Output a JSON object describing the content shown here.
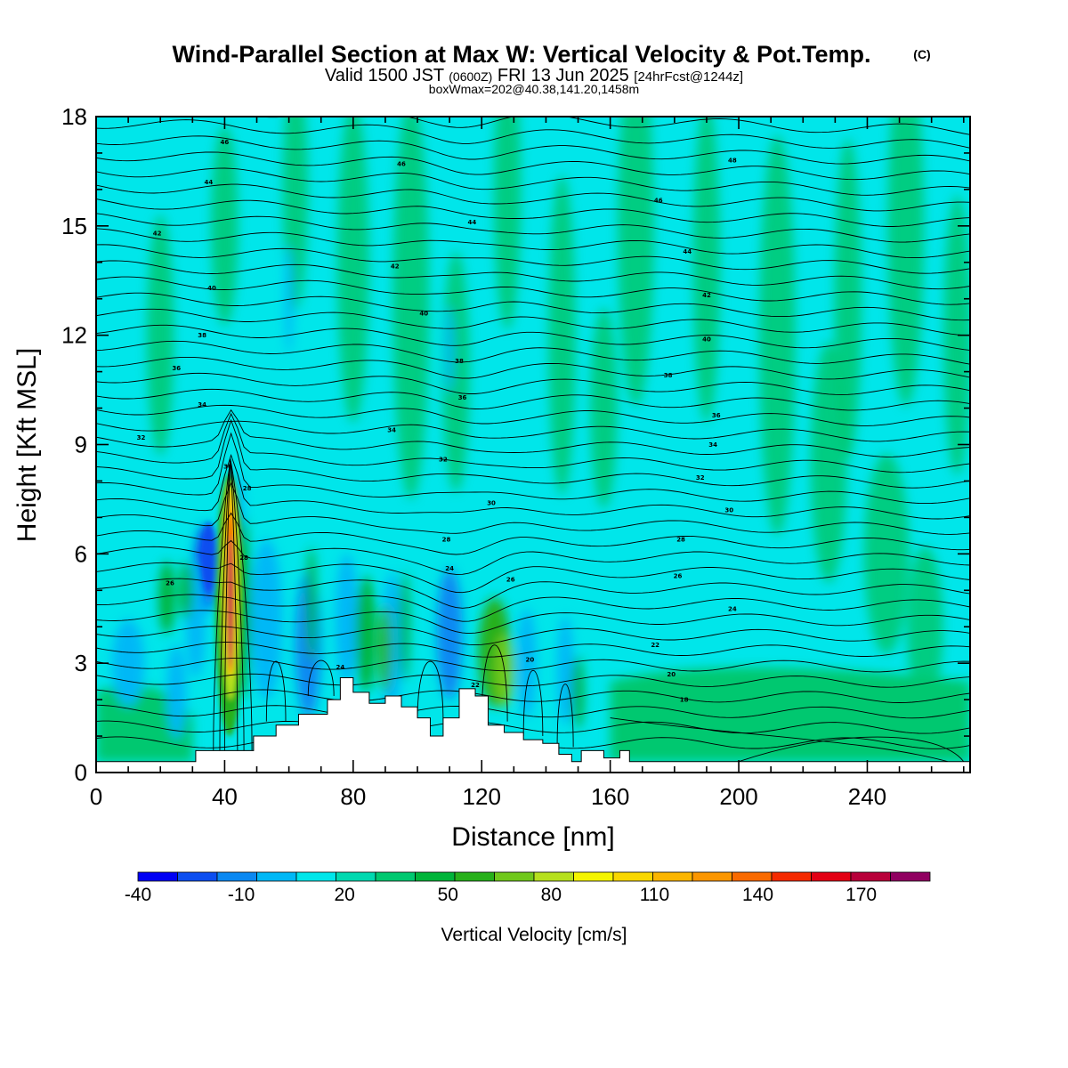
{
  "title": "Wind-Parallel Section at Max W: Vertical Velocity & Pot.Temp.",
  "title_mark": "(C)",
  "subtitle_a": "Valid 1500 JST",
  "subtitle_b": "(0600Z)",
  "subtitle_c": "FRI 13 Jun 2025",
  "subtitle_d": "[24hrFcst@1244z]",
  "subtitle_line3": "boxWmax=202@40.38,141.20,1458m",
  "chart_data": {
    "type": "heatmap",
    "xlabel": "Distance [nm]",
    "ylabel": "Height [Kft MSL]",
    "xlim": [
      0,
      272
    ],
    "ylim": [
      0,
      18
    ],
    "x_ticks": [
      0,
      40,
      80,
      120,
      160,
      200,
      240
    ],
    "y_ticks": [
      0,
      3,
      6,
      9,
      12,
      15,
      18
    ],
    "colorbar": {
      "label": "Vertical Velocity [cm/s]",
      "min": -40,
      "max": 190,
      "step": 10,
      "tick_values": [
        -40,
        -10,
        20,
        50,
        80,
        110,
        140,
        170
      ],
      "tick_labels": [
        "-40",
        "-10",
        "20",
        "50",
        "80",
        "110",
        "140",
        "170"
      ],
      "colors": [
        "#0000f5",
        "#0c4ef0",
        "#0a88f2",
        "#00b8f6",
        "#00e6ea",
        "#00d9b0",
        "#00c870",
        "#00b43a",
        "#27b01a",
        "#70c81c",
        "#b6e01e",
        "#f5f500",
        "#f9d700",
        "#fbb500",
        "#fb9600",
        "#f96a00",
        "#f52a00",
        "#e30014",
        "#b8003a",
        "#900060",
        "#6a0090"
      ]
    },
    "terrain": [
      [
        0,
        0.3
      ],
      [
        27,
        0.3
      ],
      [
        31,
        0.6
      ],
      [
        45,
        0.6
      ],
      [
        49,
        1.0
      ],
      [
        56,
        1.3
      ],
      [
        63,
        1.6
      ],
      [
        72,
        2.0
      ],
      [
        76,
        2.6
      ],
      [
        80,
        2.2
      ],
      [
        85,
        1.9
      ],
      [
        90,
        2.1
      ],
      [
        95,
        1.8
      ],
      [
        100,
        1.5
      ],
      [
        104,
        1.0
      ],
      [
        108,
        1.5
      ],
      [
        113,
        2.3
      ],
      [
        118,
        2.1
      ],
      [
        122,
        1.3
      ],
      [
        127,
        1.1
      ],
      [
        133,
        0.9
      ],
      [
        139,
        0.8
      ],
      [
        144,
        0.5
      ],
      [
        148,
        0.3
      ],
      [
        151,
        0.6
      ],
      [
        158,
        0.4
      ],
      [
        163,
        0.6
      ],
      [
        166,
        0.3
      ],
      [
        272,
        0.3
      ]
    ],
    "theta_contours": {
      "units": "°C-scale potential temperature labels",
      "labels": [
        {
          "x": 40,
          "y": 17.3,
          "v": "46"
        },
        {
          "x": 95,
          "y": 16.7,
          "v": "46"
        },
        {
          "x": 198,
          "y": 16.8,
          "v": "48"
        },
        {
          "x": 35,
          "y": 16.2,
          "v": "44"
        },
        {
          "x": 175,
          "y": 15.7,
          "v": "46"
        },
        {
          "x": 117,
          "y": 15.1,
          "v": "44"
        },
        {
          "x": 19,
          "y": 14.8,
          "v": "42"
        },
        {
          "x": 184,
          "y": 14.3,
          "v": "44"
        },
        {
          "x": 93,
          "y": 13.9,
          "v": "42"
        },
        {
          "x": 36,
          "y": 13.3,
          "v": "40"
        },
        {
          "x": 190,
          "y": 13.1,
          "v": "42"
        },
        {
          "x": 102,
          "y": 12.6,
          "v": "40"
        },
        {
          "x": 33,
          "y": 12.0,
          "v": "38"
        },
        {
          "x": 190,
          "y": 11.9,
          "v": "40"
        },
        {
          "x": 113,
          "y": 11.3,
          "v": "38"
        },
        {
          "x": 25,
          "y": 11.1,
          "v": "36"
        },
        {
          "x": 178,
          "y": 10.9,
          "v": "38"
        },
        {
          "x": 114,
          "y": 10.3,
          "v": "36"
        },
        {
          "x": 33,
          "y": 10.1,
          "v": "34"
        },
        {
          "x": 193,
          "y": 9.8,
          "v": "36"
        },
        {
          "x": 92,
          "y": 9.4,
          "v": "34"
        },
        {
          "x": 14,
          "y": 9.2,
          "v": "32"
        },
        {
          "x": 192,
          "y": 9.0,
          "v": "34"
        },
        {
          "x": 41,
          "y": 8.4,
          "v": "30"
        },
        {
          "x": 108,
          "y": 8.6,
          "v": "32"
        },
        {
          "x": 188,
          "y": 8.1,
          "v": "32"
        },
        {
          "x": 47,
          "y": 7.8,
          "v": "28"
        },
        {
          "x": 123,
          "y": 7.4,
          "v": "30"
        },
        {
          "x": 197,
          "y": 7.2,
          "v": "30"
        },
        {
          "x": 109,
          "y": 6.4,
          "v": "28"
        },
        {
          "x": 182,
          "y": 6.4,
          "v": "28"
        },
        {
          "x": 46,
          "y": 5.9,
          "v": "28"
        },
        {
          "x": 110,
          "y": 5.6,
          "v": "24"
        },
        {
          "x": 129,
          "y": 5.3,
          "v": "26"
        },
        {
          "x": 181,
          "y": 5.4,
          "v": "26"
        },
        {
          "x": 23,
          "y": 5.2,
          "v": "26"
        },
        {
          "x": 198,
          "y": 4.5,
          "v": "24"
        },
        {
          "x": 174,
          "y": 3.5,
          "v": "22"
        },
        {
          "x": 76,
          "y": 2.9,
          "v": "24"
        },
        {
          "x": 135,
          "y": 3.1,
          "v": "20"
        },
        {
          "x": 179,
          "y": 2.7,
          "v": "20"
        },
        {
          "x": 118,
          "y": 2.4,
          "v": "22"
        },
        {
          "x": 183,
          "y": 2.0,
          "v": "18"
        }
      ]
    }
  }
}
